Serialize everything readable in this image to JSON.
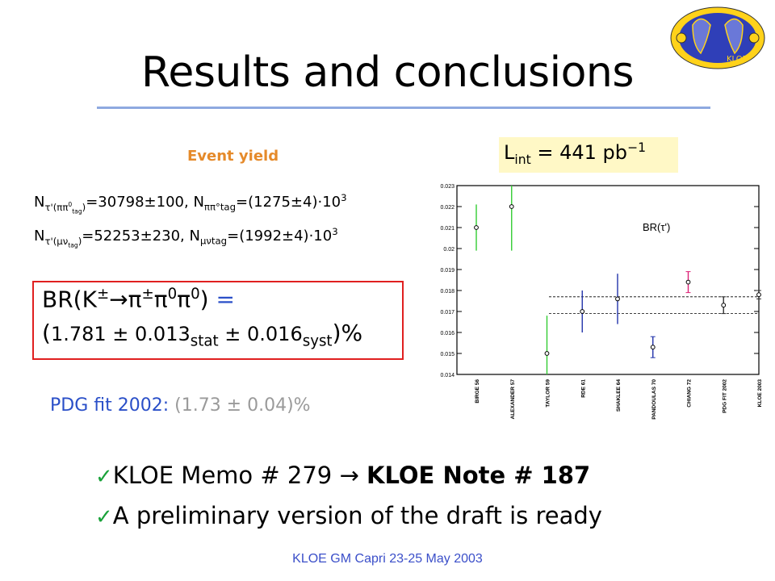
{
  "slide": {
    "title": "Results and conclusions",
    "footer": "KLOE GM Capri  23-25 May 2003",
    "logo_text": "KLOE"
  },
  "event_yield": {
    "heading": "Event yield",
    "lint_label": "L",
    "lint_sub": "int",
    "lint_value": " = 441 pb",
    "lint_sup": "−1",
    "line1": {
      "n_label": "N",
      "n_sub": "τ'(ππ",
      "n_sub2": "0",
      "n_sub3": "tag",
      "n_close": ")",
      "value": "=30798±100, N",
      "tag_sub": "ππ°tag",
      "tag_value": "=(1275±4)·10",
      "tag_exp": "3"
    },
    "line2": {
      "n_label": "N",
      "n_sub": "τ'(μν",
      "n_sub3": "tag",
      "n_close": ")",
      "value": "=52253±230, N",
      "tag_sub": "μνtag",
      "tag_value": "=(1992±4)·10",
      "tag_exp": "3"
    }
  },
  "result": {
    "br_lhs": "BR(K",
    "br_pm": "±",
    "br_arrow": "→π",
    "br_pm2": "±",
    "br_pi0": "π",
    "br_zero1": "0",
    "br_pi0b": "π",
    "br_zero2": "0",
    "br_close": ")",
    "br_eq": " =",
    "val_open": "(",
    "value": "1.781 ",
    "pm1": "±",
    "stat": " 0.013",
    "stat_sub": "stat",
    "pm2": " ±",
    "syst": " 0.016",
    "syst_sub": "syst",
    "val_close": ")%"
  },
  "pdg": {
    "label": "PDG fit 2002: ",
    "value": "(1.73 ± 0.04)%"
  },
  "bullets": [
    {
      "text_plain": "KLOE Memo # 279 → ",
      "text_bold": "KLOE Note # 187"
    },
    {
      "text_plain": "A preliminary  version of the draft is ready",
      "text_bold": ""
    }
  ],
  "chart_data": {
    "type": "scatter",
    "title": "BR(τ')",
    "xlabel": "",
    "ylabel": "",
    "ylim": [
      0.014,
      0.023
    ],
    "yticks": [
      0.014,
      0.015,
      0.016,
      0.017,
      0.018,
      0.019,
      0.02,
      0.021,
      0.022,
      0.023
    ],
    "ytick_labels": [
      "0.014",
      "0.015",
      "0.016",
      "0.017",
      "0.018",
      "0.019",
      "0.02",
      "0.021",
      "0.022",
      "0.023"
    ],
    "categories": [
      "BIRGE 56",
      "ALEXANDER 57",
      "TAYLOR 59",
      "RDE 61",
      "SHAKLEE 64",
      "PANDOULAS 70",
      "CHIANG 72",
      "PDG FIT 2002",
      "KLOE 2003"
    ],
    "values": [
      0.021,
      0.022,
      0.015,
      0.017,
      0.0176,
      0.0153,
      0.0184,
      0.0173,
      0.0178
    ],
    "errors": [
      0.0011,
      0.0021,
      0.0018,
      0.001,
      0.0012,
      0.0005,
      0.0005,
      0.0004,
      0.0002
    ],
    "colors": [
      "#33cc33",
      "#33cc33",
      "#33cc33",
      "#2233aa",
      "#2233aa",
      "#2233aa",
      "#dd2277",
      "#333333",
      "#333333"
    ],
    "band": [
      0.0169,
      0.0177
    ],
    "grid": false
  }
}
